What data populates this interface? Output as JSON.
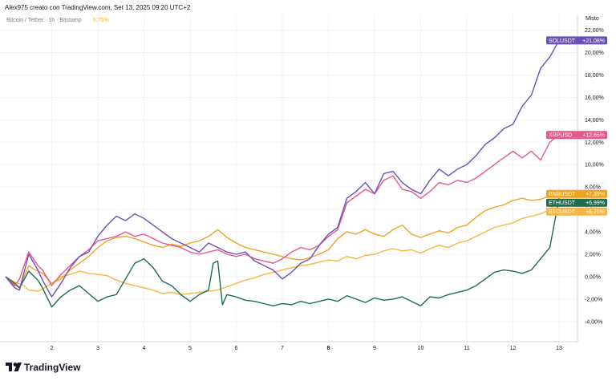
{
  "header": {
    "creator": "Alex975 creato con TradingView.com, Set 13, 2025 09:20 UTC+2",
    "symbol": "Bitcoin / Tether · 1h · Bitstamp",
    "value": "6,75%",
    "value_color": "#f7b643"
  },
  "scale_label": "Misto",
  "logo_text": "TradingView",
  "chart_data": {
    "type": "line",
    "x_ticks": [
      "2",
      "3",
      "4",
      "5",
      "6",
      "7",
      "8",
      "9",
      "10",
      "11",
      "12",
      "13"
    ],
    "x_tick_values": [
      2,
      3,
      4,
      5,
      6,
      7,
      8,
      9,
      10,
      11,
      12,
      13
    ],
    "bold_tick": "8",
    "xlim": [
      1,
      13.4
    ],
    "y_ticks": [
      "22,00%",
      "20,00%",
      "18,00%",
      "16,00%",
      "14,00%",
      "12,00%",
      "10,00%",
      "8,00%",
      "6,00%",
      "4,00%",
      "2,00%",
      "0,00%",
      "-2,00%",
      "-4,00%"
    ],
    "y_tick_values": [
      22,
      20,
      18,
      16,
      14,
      12,
      10,
      8,
      6,
      4,
      2,
      0,
      -2,
      -4
    ],
    "ylim": [
      -5.8,
      23.4
    ],
    "series": [
      {
        "name": "BTCUSDT",
        "color": "#f7b643",
        "label": "+6,75%",
        "last": 6.75,
        "x": [
          1.0,
          1.2,
          1.4,
          1.5,
          1.7,
          1.8,
          2.0,
          2.2,
          2.4,
          2.6,
          2.8,
          3.0,
          3.2,
          3.4,
          3.6,
          3.8,
          4.0,
          4.2,
          4.4,
          4.6,
          4.8,
          5.0,
          5.2,
          5.4,
          5.6,
          5.8,
          6.0,
          6.2,
          6.4,
          6.6,
          6.8,
          7.0,
          7.2,
          7.4,
          7.6,
          7.8,
          8.0,
          8.2,
          8.4,
          8.6,
          8.8,
          9.0,
          9.2,
          9.4,
          9.6,
          9.8,
          10.0,
          10.2,
          10.4,
          10.6,
          10.8,
          11.0,
          11.2,
          11.4,
          11.6,
          11.8,
          12.0,
          12.2,
          12.4,
          12.6,
          12.8,
          13.0
        ],
        "y": [
          0.0,
          -0.5,
          -0.8,
          -1.2,
          -1.3,
          -1.1,
          -0.6,
          0.0,
          0.2,
          0.5,
          0.3,
          0.2,
          0.1,
          -0.3,
          -0.6,
          -0.8,
          -1.0,
          -1.2,
          -1.5,
          -1.4,
          -1.6,
          -1.5,
          -1.4,
          -1.3,
          -1.2,
          -0.9,
          -0.6,
          -0.3,
          -0.1,
          0.2,
          0.4,
          0.6,
          0.8,
          1.0,
          1.1,
          1.3,
          1.5,
          1.4,
          1.8,
          1.6,
          1.9,
          2.0,
          2.3,
          2.5,
          2.3,
          2.4,
          2.1,
          2.5,
          2.8,
          2.6,
          3.0,
          3.2,
          3.6,
          4.0,
          4.4,
          4.6,
          4.8,
          5.2,
          5.4,
          5.6,
          6.0,
          6.75
        ]
      },
      {
        "name": "BNBUSDT",
        "color": "#f0a322",
        "label": "+7,39%",
        "last": 7.39,
        "x": [
          1.0,
          1.2,
          1.3,
          1.5,
          1.6,
          1.8,
          2.0,
          2.2,
          2.4,
          2.6,
          2.8,
          3.0,
          3.2,
          3.4,
          3.6,
          3.8,
          4.0,
          4.2,
          4.4,
          4.6,
          4.8,
          5.0,
          5.2,
          5.4,
          5.6,
          5.8,
          6.0,
          6.2,
          6.4,
          6.6,
          6.8,
          7.0,
          7.2,
          7.4,
          7.6,
          7.8,
          8.0,
          8.2,
          8.4,
          8.6,
          8.8,
          9.0,
          9.2,
          9.4,
          9.6,
          9.8,
          10.0,
          10.2,
          10.4,
          10.6,
          10.8,
          11.0,
          11.2,
          11.4,
          11.6,
          11.8,
          12.0,
          12.2,
          12.4,
          12.6,
          12.8,
          13.0
        ],
        "y": [
          0.0,
          -0.7,
          -1.0,
          1.0,
          0.7,
          0.3,
          -0.6,
          -0.2,
          0.6,
          1.2,
          1.8,
          2.6,
          3.2,
          3.5,
          3.6,
          3.4,
          3.1,
          2.8,
          2.6,
          2.9,
          2.7,
          3.0,
          3.2,
          3.6,
          4.2,
          3.5,
          3.0,
          2.6,
          2.4,
          2.2,
          2.0,
          1.8,
          1.6,
          1.5,
          1.7,
          2.0,
          2.4,
          3.4,
          4.0,
          3.8,
          4.2,
          3.8,
          3.6,
          4.2,
          4.6,
          3.8,
          3.5,
          3.8,
          4.1,
          3.9,
          4.4,
          4.6,
          5.3,
          5.9,
          6.2,
          6.4,
          6.8,
          7.0,
          6.8,
          6.9,
          7.2,
          7.39
        ]
      },
      {
        "name": "ETHUSDT",
        "color": "#1c6e4b",
        "label": "+6,99%",
        "last": 6.99,
        "x": [
          1.0,
          1.2,
          1.3,
          1.5,
          1.7,
          1.8,
          2.0,
          2.2,
          2.4,
          2.6,
          2.8,
          3.0,
          3.2,
          3.4,
          3.6,
          3.8,
          4.0,
          4.2,
          4.4,
          4.6,
          4.8,
          5.0,
          5.2,
          5.4,
          5.5,
          5.6,
          5.7,
          5.8,
          6.0,
          6.2,
          6.4,
          6.6,
          6.8,
          7.0,
          7.2,
          7.4,
          7.6,
          7.8,
          8.0,
          8.2,
          8.4,
          8.6,
          8.8,
          9.0,
          9.2,
          9.4,
          9.6,
          9.8,
          10.0,
          10.2,
          10.4,
          10.6,
          10.8,
          11.0,
          11.2,
          11.4,
          11.6,
          11.8,
          12.0,
          12.2,
          12.4,
          12.6,
          12.8,
          13.0
        ],
        "y": [
          0.0,
          -0.6,
          -1.0,
          0.5,
          -0.3,
          -1.0,
          -2.7,
          -1.8,
          -1.2,
          -0.8,
          -1.5,
          -2.2,
          -1.8,
          -1.6,
          -0.2,
          1.2,
          1.6,
          0.8,
          -0.4,
          -0.8,
          -1.6,
          -2.2,
          -1.6,
          -1.2,
          1.2,
          1.4,
          -2.5,
          -1.6,
          -1.8,
          -2.1,
          -2.2,
          -2.4,
          -2.6,
          -2.4,
          -2.5,
          -2.2,
          -2.4,
          -2.2,
          -2.0,
          -2.2,
          -1.7,
          -2.0,
          -2.3,
          -1.9,
          -2.1,
          -2.0,
          -1.8,
          -2.2,
          -2.6,
          -1.8,
          -1.9,
          -1.6,
          -1.4,
          -1.2,
          -0.8,
          -0.2,
          0.4,
          0.6,
          0.5,
          0.3,
          0.6,
          1.6,
          2.6,
          6.99
        ]
      },
      {
        "name": "XRPUSD",
        "color": "#e8578a",
        "label": "+12,65%",
        "last": 12.65,
        "x": [
          1.0,
          1.2,
          1.3,
          1.5,
          1.7,
          1.8,
          2.0,
          2.2,
          2.4,
          2.6,
          2.8,
          3.0,
          3.2,
          3.4,
          3.6,
          3.8,
          4.0,
          4.2,
          4.4,
          4.6,
          4.8,
          5.0,
          5.2,
          5.4,
          5.6,
          5.8,
          6.0,
          6.2,
          6.4,
          6.6,
          6.8,
          7.0,
          7.2,
          7.4,
          7.6,
          7.8,
          8.0,
          8.2,
          8.4,
          8.6,
          8.8,
          9.0,
          9.2,
          9.4,
          9.6,
          9.8,
          10.0,
          10.2,
          10.4,
          10.6,
          10.8,
          11.0,
          11.2,
          11.4,
          11.6,
          11.8,
          12.0,
          12.2,
          12.4,
          12.6,
          12.8,
          13.0
        ],
        "y": [
          0.0,
          -0.8,
          -0.2,
          2.2,
          1.0,
          0.6,
          -0.8,
          0.2,
          1.0,
          1.8,
          2.4,
          3.2,
          3.4,
          3.6,
          4.0,
          3.6,
          3.8,
          3.4,
          3.0,
          2.8,
          2.6,
          2.2,
          2.0,
          2.2,
          2.4,
          2.0,
          1.8,
          2.0,
          1.6,
          1.4,
          1.2,
          1.6,
          2.2,
          2.6,
          2.4,
          2.8,
          3.6,
          4.2,
          6.6,
          7.2,
          7.8,
          7.4,
          8.6,
          9.0,
          7.8,
          7.6,
          7.0,
          7.6,
          8.4,
          8.2,
          8.6,
          8.4,
          8.8,
          9.4,
          10.0,
          10.6,
          11.2,
          10.6,
          11.2,
          10.4,
          12.0,
          12.65
        ]
      },
      {
        "name": "SOLUSDT",
        "color": "#6c4fbc",
        "label": "+21,08%",
        "last": 21.08,
        "x": [
          1.0,
          1.2,
          1.3,
          1.5,
          1.7,
          1.8,
          2.0,
          2.2,
          2.4,
          2.6,
          2.8,
          3.0,
          3.2,
          3.4,
          3.6,
          3.8,
          4.0,
          4.2,
          4.4,
          4.6,
          4.8,
          5.0,
          5.2,
          5.4,
          5.6,
          5.8,
          6.0,
          6.2,
          6.4,
          6.6,
          6.8,
          7.0,
          7.2,
          7.4,
          7.6,
          7.8,
          8.0,
          8.2,
          8.4,
          8.6,
          8.8,
          9.0,
          9.2,
          9.4,
          9.6,
          9.8,
          10.0,
          10.2,
          10.4,
          10.6,
          10.8,
          11.0,
          11.2,
          11.4,
          11.6,
          11.8,
          12.0,
          12.2,
          12.4,
          12.6,
          12.8,
          13.0
        ],
        "y": [
          0.0,
          -1.0,
          -1.2,
          2.0,
          0.6,
          -0.3,
          -1.8,
          -0.6,
          0.8,
          1.8,
          2.2,
          3.6,
          4.6,
          5.4,
          5.0,
          5.6,
          5.2,
          4.6,
          4.0,
          3.4,
          3.0,
          2.6,
          2.2,
          3.0,
          2.6,
          2.2,
          2.0,
          2.2,
          1.4,
          1.0,
          0.6,
          -0.2,
          0.4,
          1.2,
          1.6,
          2.8,
          3.8,
          4.4,
          7.0,
          7.6,
          8.4,
          7.4,
          9.2,
          9.4,
          8.4,
          7.8,
          7.4,
          8.6,
          9.6,
          9.0,
          9.6,
          10.0,
          10.8,
          11.8,
          12.4,
          13.2,
          13.6,
          15.2,
          16.2,
          18.6,
          19.6,
          21.08
        ]
      }
    ]
  }
}
